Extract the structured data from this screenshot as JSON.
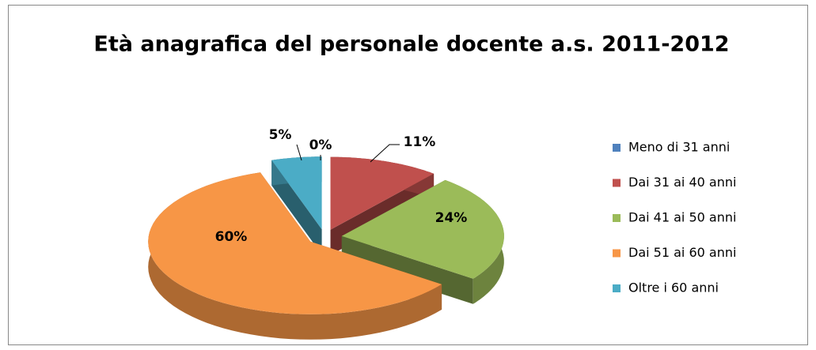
{
  "chart_data": {
    "type": "pie",
    "title": "Età anagrafica del personale docente a.s. 2011-2012",
    "categories": [
      "Meno di 31 anni",
      "Dai 31 ai 40 anni",
      "Dai 41 ai 50 anni",
      "Dai 51 ai 60 anni",
      "Oltre i 60 anni"
    ],
    "values": [
      0,
      11,
      24,
      60,
      5
    ],
    "value_labels": [
      "0%",
      "11%",
      "24%",
      "60%",
      "5%"
    ],
    "colors": [
      "#4f81bd",
      "#c0504d",
      "#9bbb59",
      "#f79646",
      "#4bacc6"
    ],
    "legend": "right"
  }
}
